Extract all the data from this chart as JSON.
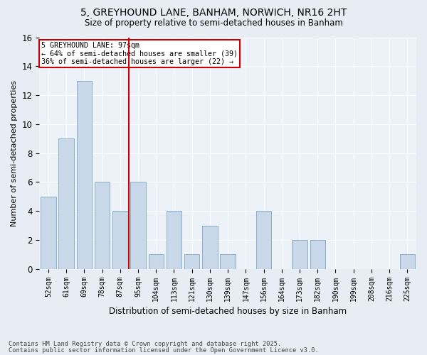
{
  "title1": "5, GREYHOUND LANE, BANHAM, NORWICH, NR16 2HT",
  "title2": "Size of property relative to semi-detached houses in Banham",
  "xlabel": "Distribution of semi-detached houses by size in Banham",
  "ylabel": "Number of semi-detached properties",
  "categories": [
    "52sqm",
    "61sqm",
    "69sqm",
    "78sqm",
    "87sqm",
    "95sqm",
    "104sqm",
    "113sqm",
    "121sqm",
    "130sqm",
    "139sqm",
    "147sqm",
    "156sqm",
    "164sqm",
    "173sqm",
    "182sqm",
    "190sqm",
    "199sqm",
    "208sqm",
    "216sqm",
    "225sqm"
  ],
  "values": [
    5,
    9,
    13,
    6,
    4,
    6,
    1,
    4,
    1,
    3,
    1,
    0,
    4,
    0,
    2,
    2,
    0,
    0,
    0,
    0,
    1
  ],
  "bar_color": "#c8d8e8",
  "bar_edge_color": "#8ab0cc",
  "vline_color": "#cc0000",
  "vline_x_index": 4.5,
  "annotation_title": "5 GREYHOUND LANE: 97sqm",
  "annotation_line1": "← 64% of semi-detached houses are smaller (39)",
  "annotation_line2": "36% of semi-detached houses are larger (22) →",
  "annotation_box_color": "#cc0000",
  "ylim": [
    0,
    16
  ],
  "yticks": [
    0,
    2,
    4,
    6,
    8,
    10,
    12,
    14,
    16
  ],
  "footer1": "Contains HM Land Registry data © Crown copyright and database right 2025.",
  "footer2": "Contains public sector information licensed under the Open Government Licence v3.0.",
  "bg_color": "#e8ecf4",
  "plot_bg_color": "#edf1f8"
}
